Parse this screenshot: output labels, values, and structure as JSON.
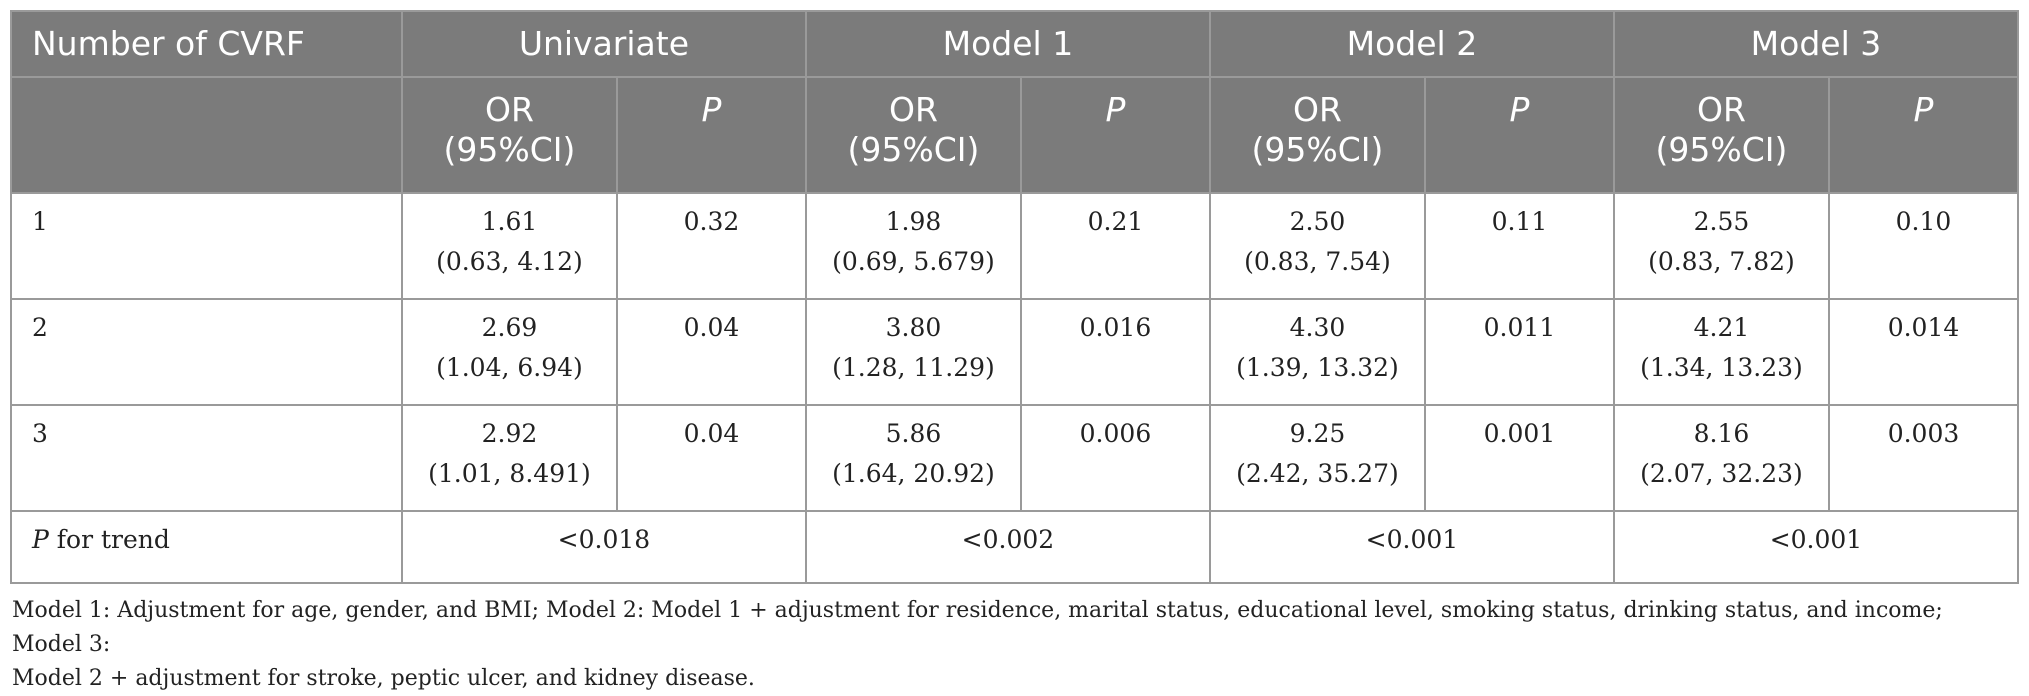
{
  "table": {
    "header_first": "Number of CVRF",
    "groups": [
      "Univariate",
      "Model 1",
      "Model 2",
      "Model 3"
    ],
    "sub_or_line1": "OR",
    "sub_or_line2": "(95%CI)",
    "sub_p": "P",
    "rows": [
      {
        "label": "1",
        "cells": [
          {
            "or": "1.61",
            "ci": "(0.63, 4.12)",
            "p": "0.32"
          },
          {
            "or": "1.98",
            "ci": "(0.69, 5.679)",
            "p": "0.21"
          },
          {
            "or": "2.50",
            "ci": "(0.83, 7.54)",
            "p": "0.11"
          },
          {
            "or": "2.55",
            "ci": "(0.83, 7.82)",
            "p": "0.10"
          }
        ]
      },
      {
        "label": "2",
        "cells": [
          {
            "or": "2.69",
            "ci": "(1.04, 6.94)",
            "p": "0.04"
          },
          {
            "or": "3.80",
            "ci": "(1.28, 11.29)",
            "p": "0.016"
          },
          {
            "or": "4.30",
            "ci": "(1.39, 13.32)",
            "p": "0.011"
          },
          {
            "or": "4.21",
            "ci": "(1.34, 13.23)",
            "p": "0.014"
          }
        ]
      },
      {
        "label": "3",
        "cells": [
          {
            "or": "2.92",
            "ci": "(1.01, 8.491)",
            "p": "0.04"
          },
          {
            "or": "5.86",
            "ci": "(1.64, 20.92)",
            "p": "0.006"
          },
          {
            "or": "9.25",
            "ci": "(2.42, 35.27)",
            "p": "0.001"
          },
          {
            "or": "8.16",
            "ci": "(2.07, 32.23)",
            "p": "0.003"
          }
        ]
      }
    ],
    "trend": {
      "label_italic": "P",
      "label_rest": " for trend",
      "values": [
        "<0.018",
        "<0.002",
        "<0.001",
        "<0.001"
      ]
    }
  },
  "footnote": {
    "line1": "Model 1: Adjustment for age, gender, and BMI; Model 2: Model 1 + adjustment for residence, marital status, educational level, smoking status, drinking status, and income; Model 3:",
    "line2": "Model 2 + adjustment for stroke, peptic ulcer, and kidney disease."
  }
}
